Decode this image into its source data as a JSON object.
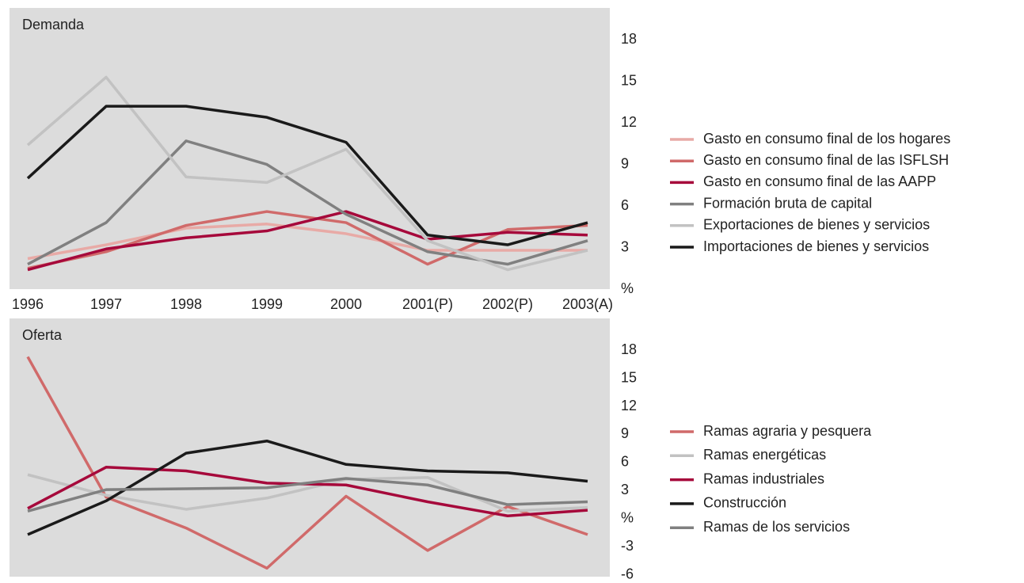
{
  "chart_data": [
    {
      "type": "line",
      "title": "Demanda",
      "categories": [
        "1996",
        "1997",
        "1998",
        "1999",
        "2000",
        "2001(P)",
        "2002(P)",
        "2003(A)"
      ],
      "ylim": [
        0,
        20.3
      ],
      "yticks": [
        {
          "value": 0,
          "label": "%"
        },
        3,
        6,
        9,
        12,
        15,
        18
      ],
      "series": [
        {
          "name": "Gasto en consumo final de los hogares",
          "color": "#e8aaa6",
          "values": [
            2.2,
            3.2,
            4.4,
            4.7,
            4.0,
            2.8,
            2.8,
            2.8
          ]
        },
        {
          "name": "Gasto en consumo final de las ISFLSH",
          "color": "#d06a6a",
          "values": [
            1.5,
            2.7,
            4.6,
            5.6,
            4.8,
            1.8,
            4.3,
            4.6
          ]
        },
        {
          "name": "Gasto en consumo final de las AAPP",
          "color": "#a6093b",
          "values": [
            1.4,
            2.9,
            3.7,
            4.2,
            5.6,
            3.6,
            4.1,
            3.9
          ]
        },
        {
          "name": "Formación bruta de capital",
          "color": "#808080",
          "values": [
            1.8,
            4.8,
            10.7,
            9.0,
            5.4,
            2.7,
            1.8,
            3.5
          ]
        },
        {
          "name": "Exportaciones de bienes y servicios",
          "color": "#c2c2c2",
          "values": [
            10.4,
            15.3,
            8.1,
            7.7,
            10.1,
            3.5,
            1.4,
            2.8
          ]
        },
        {
          "name": "Importaciones de bienes y servicios",
          "color": "#1a1a1a",
          "values": [
            8.0,
            13.2,
            13.2,
            12.4,
            10.6,
            3.9,
            3.2,
            4.8
          ]
        }
      ]
    },
    {
      "type": "line",
      "title": "Oferta",
      "ylim": [
        -6.2,
        21.4
      ],
      "yticks": [
        -6,
        -3,
        {
          "value": 0,
          "label": "%"
        },
        3,
        6,
        9,
        12,
        15,
        18
      ],
      "series": [
        {
          "name": "Ramas agraria y pesquera",
          "color": "#d06a6a",
          "values": [
            17.3,
            2.3,
            -1.0,
            -5.3,
            2.4,
            -3.4,
            1.3,
            -1.7
          ]
        },
        {
          "name": "Ramas energéticas",
          "color": "#c2c2c2",
          "values": [
            4.7,
            2.5,
            1.0,
            2.2,
            4.2,
            4.4,
            0.8,
            1.2
          ]
        },
        {
          "name": "Ramas industriales",
          "color": "#a6093b",
          "values": [
            1.1,
            5.5,
            5.1,
            3.8,
            3.6,
            1.8,
            0.3,
            0.9
          ]
        },
        {
          "name": "Construcción",
          "color": "#1a1a1a",
          "values": [
            -1.7,
            1.9,
            7.0,
            8.3,
            5.8,
            5.1,
            4.9,
            4.0
          ]
        },
        {
          "name": "Ramas de los servicios",
          "color": "#808080",
          "values": [
            0.8,
            3.1,
            3.2,
            3.3,
            4.3,
            3.6,
            1.5,
            1.8
          ]
        }
      ]
    }
  ]
}
